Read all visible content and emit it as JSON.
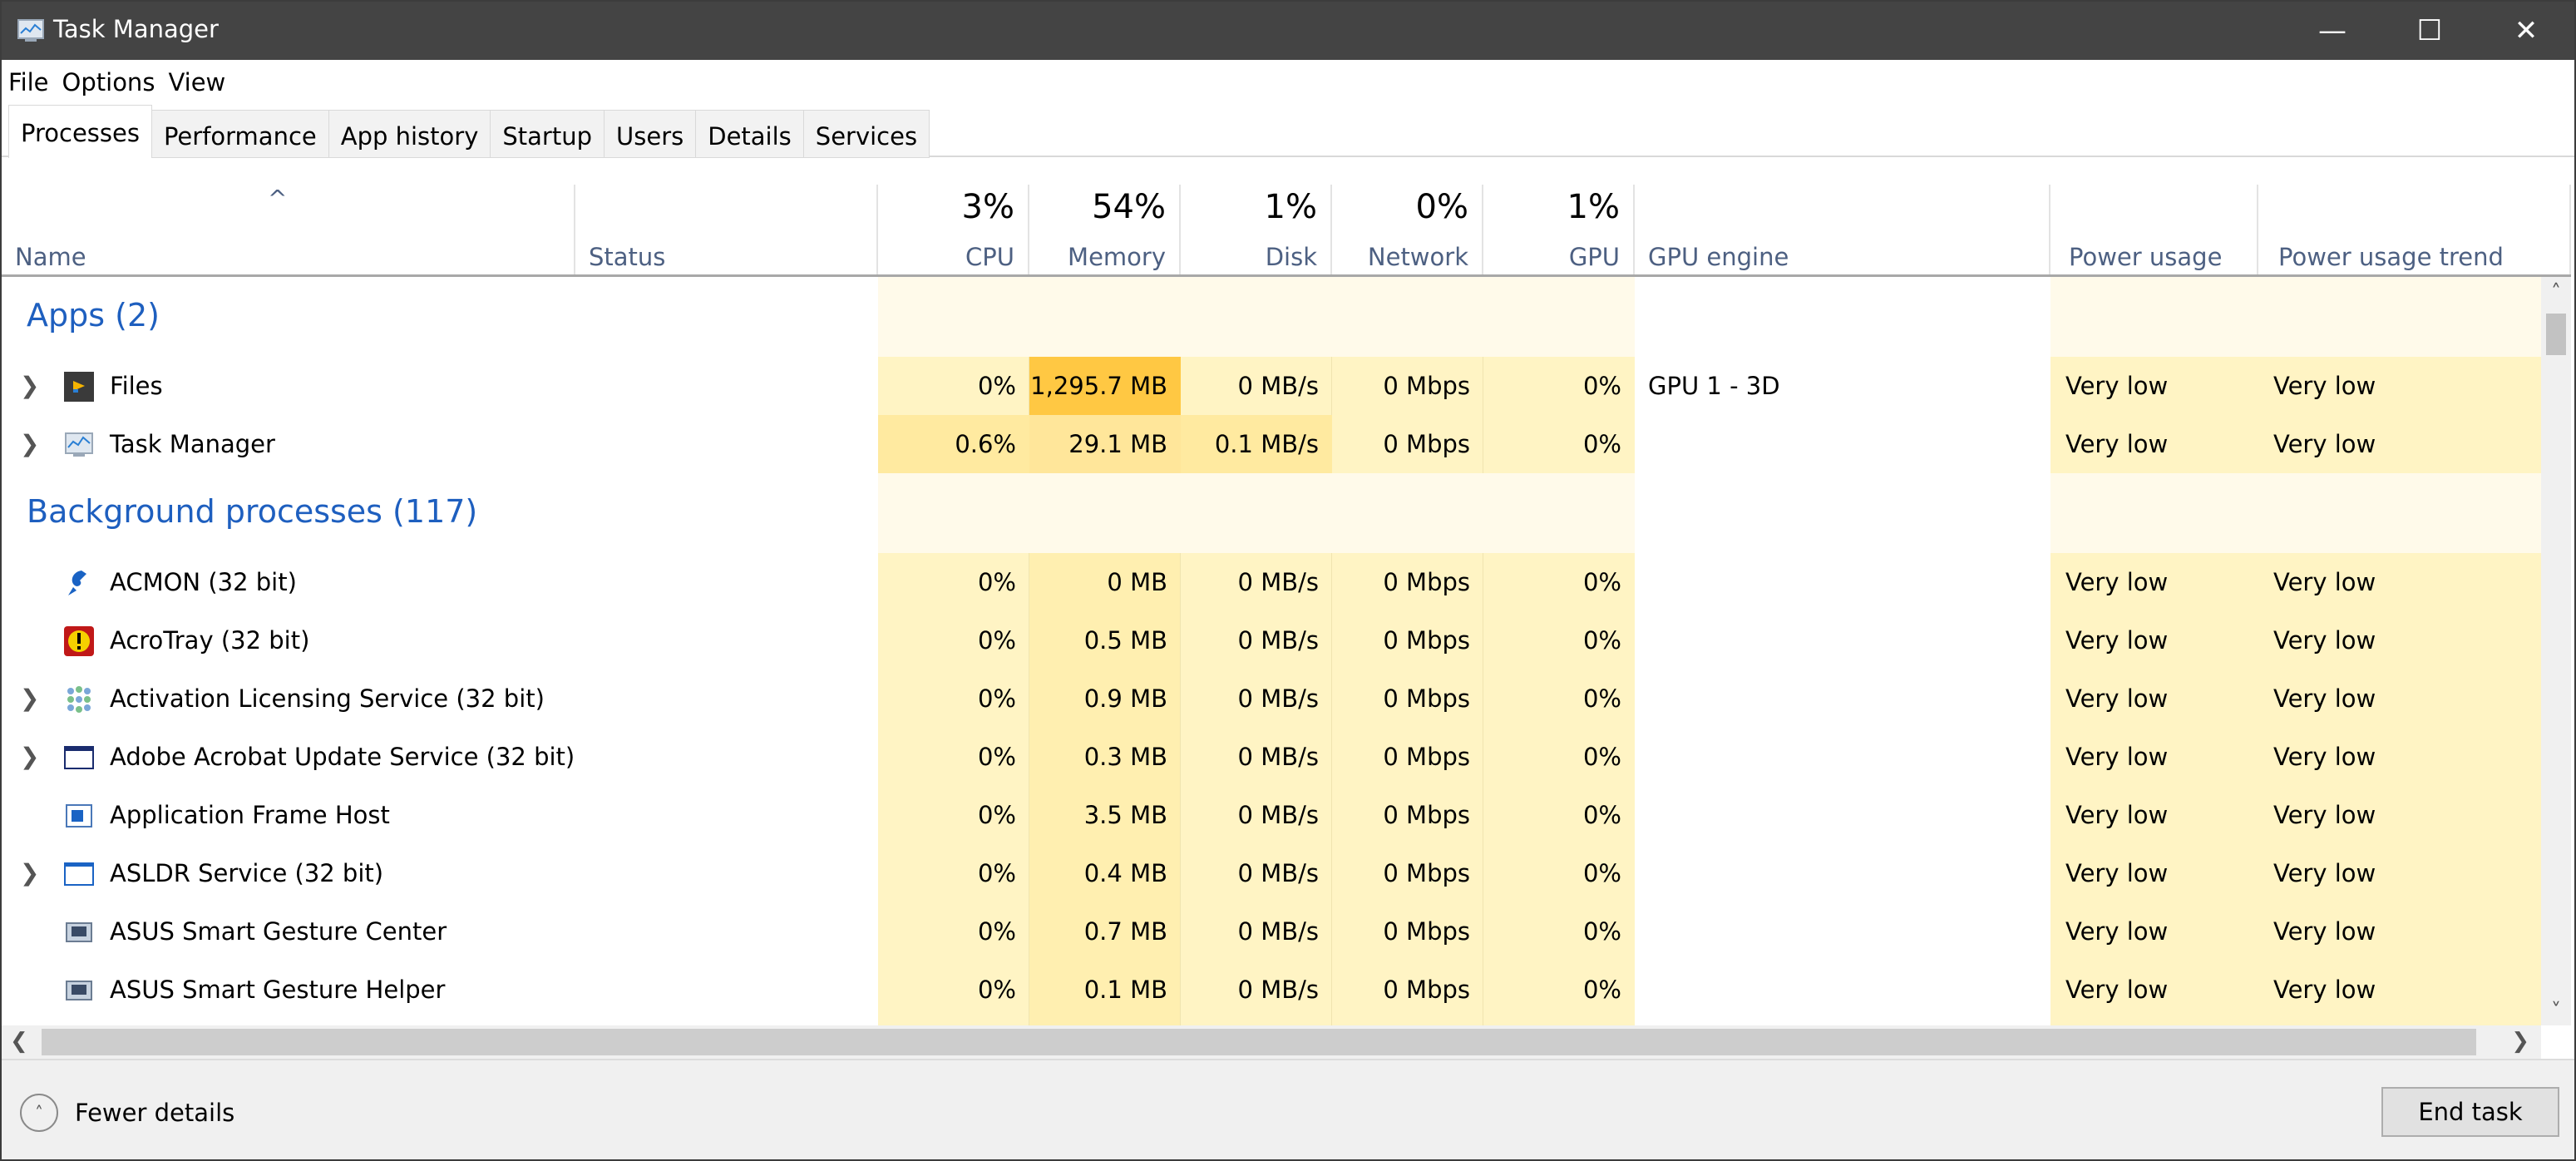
{
  "window": {
    "title": "Task Manager",
    "minimize": "—",
    "maximize": "☐",
    "close": "✕"
  },
  "menu": [
    "File",
    "Options",
    "View"
  ],
  "tabs": [
    "Processes",
    "Performance",
    "App history",
    "Startup",
    "Users",
    "Details",
    "Services"
  ],
  "header": {
    "sort_arrow": "^",
    "name": "Name",
    "status": "Status",
    "cpu": {
      "pct": "3%",
      "label": "CPU"
    },
    "memory": {
      "pct": "54%",
      "label": "Memory"
    },
    "disk": {
      "pct": "1%",
      "label": "Disk"
    },
    "network": {
      "pct": "0%",
      "label": "Network"
    },
    "gpu": {
      "pct": "1%",
      "label": "GPU"
    },
    "gpu_engine": "GPU engine",
    "power": "Power usage",
    "trend": "Power usage trend"
  },
  "groups": {
    "apps": "Apps (2)",
    "background": "Background processes (117)"
  },
  "apps": [
    {
      "name": "Files",
      "cpu": "0%",
      "mem": "1,295.7 MB",
      "disk": "0 MB/s",
      "net": "0 Mbps",
      "gpu": "0%",
      "engine": "GPU 1 - 3D",
      "power": "Very low",
      "trend": "Very low"
    },
    {
      "name": "Task Manager",
      "cpu": "0.6%",
      "mem": "29.1 MB",
      "disk": "0.1 MB/s",
      "net": "0 Mbps",
      "gpu": "0%",
      "engine": "",
      "power": "Very low",
      "trend": "Very low"
    }
  ],
  "background": [
    {
      "name": "ACMON (32 bit)",
      "cpu": "0%",
      "mem": "0 MB",
      "disk": "0 MB/s",
      "net": "0 Mbps",
      "gpu": "0%",
      "power": "Very low",
      "trend": "Very low"
    },
    {
      "name": "AcroTray (32 bit)",
      "cpu": "0%",
      "mem": "0.5 MB",
      "disk": "0 MB/s",
      "net": "0 Mbps",
      "gpu": "0%",
      "power": "Very low",
      "trend": "Very low"
    },
    {
      "name": "Activation Licensing Service (32 bit)",
      "cpu": "0%",
      "mem": "0.9 MB",
      "disk": "0 MB/s",
      "net": "0 Mbps",
      "gpu": "0%",
      "power": "Very low",
      "trend": "Very low"
    },
    {
      "name": "Adobe Acrobat Update Service (32 bit)",
      "cpu": "0%",
      "mem": "0.3 MB",
      "disk": "0 MB/s",
      "net": "0 Mbps",
      "gpu": "0%",
      "power": "Very low",
      "trend": "Very low"
    },
    {
      "name": "Application Frame Host",
      "cpu": "0%",
      "mem": "3.5 MB",
      "disk": "0 MB/s",
      "net": "0 Mbps",
      "gpu": "0%",
      "power": "Very low",
      "trend": "Very low"
    },
    {
      "name": "ASLDR Service (32 bit)",
      "cpu": "0%",
      "mem": "0.4 MB",
      "disk": "0 MB/s",
      "net": "0 Mbps",
      "gpu": "0%",
      "power": "Very low",
      "trend": "Very low"
    },
    {
      "name": "ASUS Smart Gesture Center",
      "cpu": "0%",
      "mem": "0.7 MB",
      "disk": "0 MB/s",
      "net": "0 Mbps",
      "gpu": "0%",
      "power": "Very low",
      "trend": "Very low"
    },
    {
      "name": "ASUS Smart Gesture Helper",
      "cpu": "0%",
      "mem": "0.1 MB",
      "disk": "0 MB/s",
      "net": "0 Mbps",
      "gpu": "0%",
      "power": "Very low",
      "trend": "Very low"
    }
  ],
  "footer": {
    "fewer_details": "Fewer details",
    "end_task": "End task"
  },
  "colors": {
    "accent_blue": "#1e5fbf",
    "title_bar": "#444444",
    "mem_high": "#ffc843",
    "heat_low": "#fff4c4"
  }
}
